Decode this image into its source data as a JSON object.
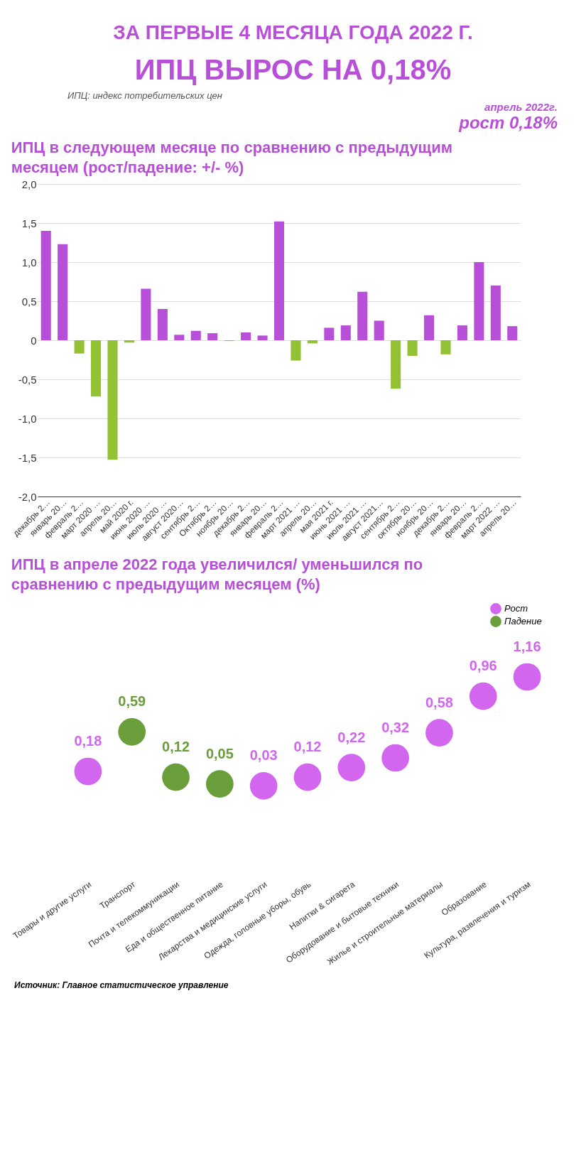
{
  "chart_data": [
    {
      "type": "bar",
      "title": "ИПЦ в следующем месяце по сравнению с предыдущим месяцем (рост/падение: +/- %)",
      "annotations": [
        "ЗА ПЕРВЫЕ 4 МЕСЯЦА ГОДА 2022 Г.",
        "ИПЦ  ВЫРОС НА 0,18%",
        "ИПЦ: индекс потребительских цен",
        "апрель 2022г.",
        "рост 0,18%"
      ],
      "categories": [
        "декабрь 2…",
        "январь 20…",
        "февраль 2…",
        "март 2020 …",
        "апрель 20…",
        "май 2020 г.",
        "июнь 2020 …",
        "июль 2020 …",
        "август 2020…",
        "сентябрь 2…",
        "Октябрь 2…",
        "ноябрь 20…",
        "декабрь 2…",
        "январь 20…",
        "февраль 2…",
        "март 2021 …",
        "апрель 20…",
        "мая 2021 г.",
        "июнь 2021 …",
        "июль 2021 …",
        "август 2021…",
        "сентябрь 2…",
        "октябрь 20…",
        "ноябрь 20…",
        "декабрь 2…",
        "январь 20…",
        "февраль 2…",
        "март 2022 …",
        "апрель 20…"
      ],
      "values": [
        1.4,
        1.23,
        -0.17,
        -0.72,
        -1.53,
        -0.03,
        0.66,
        0.4,
        0.07,
        0.12,
        0.09,
        -0.01,
        0.1,
        0.06,
        1.52,
        -0.26,
        -0.04,
        0.16,
        0.19,
        0.62,
        0.25,
        -0.62,
        -0.2,
        0.32,
        -0.18,
        0.19,
        1.0,
        0.7,
        0.18
      ],
      "colors": [
        "#b84fd8",
        "#b84fd8",
        "#92c134",
        "#92c134",
        "#92c134",
        "#92c134",
        "#b84fd8",
        "#b84fd8",
        "#b84fd8",
        "#b84fd8",
        "#b84fd8",
        "#92c134",
        "#b84fd8",
        "#b84fd8",
        "#b84fd8",
        "#92c134",
        "#92c134",
        "#b84fd8",
        "#b84fd8",
        "#b84fd8",
        "#b84fd8",
        "#92c134",
        "#92c134",
        "#b84fd8",
        "#92c134",
        "#b84fd8",
        "#b84fd8",
        "#b84fd8",
        "#b84fd8"
      ],
      "ylim": [
        -2,
        2
      ],
      "yticks": [
        {
          "value": -2,
          "label": "-2,0"
        },
        {
          "value": -1.5,
          "label": "-1,5"
        },
        {
          "value": -1,
          "label": "-1,0"
        },
        {
          "value": -0.5,
          "label": "-0,5"
        },
        0,
        {
          "value": 0.5,
          "label": "0,5"
        },
        {
          "value": 1,
          "label": "1,0"
        },
        {
          "value": 1.5,
          "label": "1,5"
        },
        {
          "value": 2,
          "label": "2,0"
        }
      ],
      "grid": "y",
      "legend": false
    },
    {
      "type": "other",
      "title": "ИПЦ в апреле 2022 года увеличился/ уменьшился по сравнению с предыдущим месяцем (%)",
      "annotations": [
        "Источник: Главное статистическое управление"
      ],
      "categories": [
        "Товары и другие услуги",
        "Транспорт",
        "Почта и телекоммуникации",
        "Еда и общественное питание",
        "Лекарства и медицинские услуги",
        "Одежда, головные уборы, обувь",
        "Напитки & сигарета",
        "Оборудование и бытовые техники",
        "Жилье и строительные материалы",
        "Образование",
        "Культура, развлечения и туризм"
      ],
      "series": [
        {
          "name": "Рост",
          "color": "#d366ee",
          "values": [
            0.18,
            null,
            null,
            null,
            0.03,
            0.12,
            0.22,
            0.32,
            0.58,
            0.96,
            1.16
          ],
          "value_labels": [
            "0,18",
            null,
            null,
            null,
            "0,03",
            "0,12",
            "0,22",
            "0,32",
            "0,58",
            "0,96",
            "1,16"
          ]
        },
        {
          "name": "Падение",
          "color": "#6a9e3a",
          "values": [
            null,
            0.59,
            0.12,
            0.05,
            null,
            null,
            null,
            null,
            null,
            null,
            null
          ],
          "value_labels": [
            null,
            "0,59",
            "0,12",
            "0,05",
            null,
            null,
            null,
            null,
            null,
            null,
            null
          ]
        }
      ],
      "legend": "top right"
    }
  ]
}
